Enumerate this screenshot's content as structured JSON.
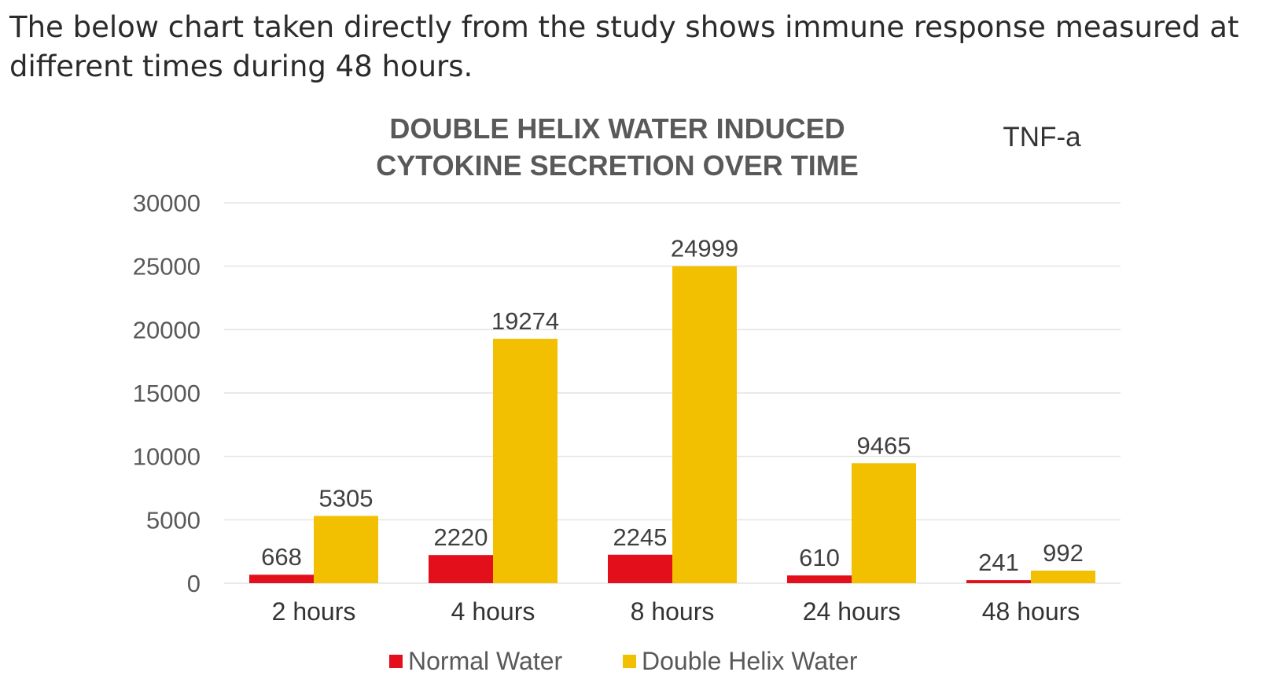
{
  "intro_text": "The below chart taken directly from the study shows immune response measured at different times during 48 hours.",
  "chart_data": {
    "type": "bar",
    "title_line1": "DOUBLE HELIX WATER INDUCED",
    "title_line2": "CYTOKINE SECRETION OVER TIME",
    "subtitle": "TNF-a",
    "xlabel": "",
    "ylabel": "",
    "ylim": [
      0,
      30000
    ],
    "yticks": [
      0,
      5000,
      10000,
      15000,
      20000,
      25000,
      30000
    ],
    "categories": [
      "2 hours",
      "4 hours",
      "8 hours",
      "24 hours",
      "48 hours"
    ],
    "series": [
      {
        "name": "Normal Water",
        "color": "#e3101c",
        "values": [
          668,
          2220,
          2245,
          610,
          241
        ]
      },
      {
        "name": "Double Helix Water",
        "color": "#f2c000",
        "values": [
          5305,
          19274,
          24999,
          9465,
          992
        ]
      }
    ],
    "grid": true,
    "legend": "bottom-center"
  }
}
